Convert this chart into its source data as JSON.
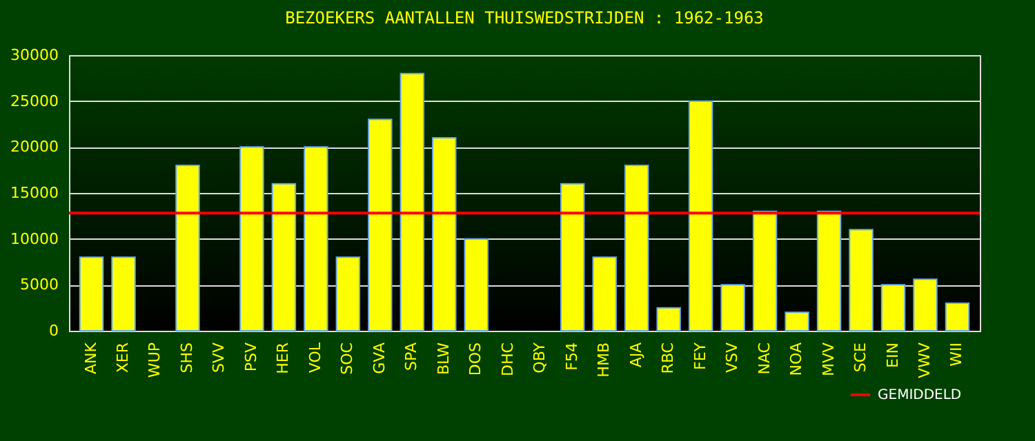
{
  "chart_data": {
    "type": "bar",
    "title": "BEZOEKERS AANTALLEN THUISWEDSTRIJDEN : 1962-1963",
    "categories": [
      "ANK",
      "XER",
      "WUP",
      "SHS",
      "SVV",
      "PSV",
      "HER",
      "VOL",
      "SOC",
      "GVA",
      "SPA",
      "BLW",
      "DOS",
      "DHC",
      "QBY",
      "F54",
      "HMB",
      "AJA",
      "RBC",
      "FEY",
      "VSV",
      "NAC",
      "NOA",
      "MVV",
      "SCE",
      "EIN",
      "VWV",
      "WII"
    ],
    "values": [
      8000,
      8000,
      null,
      18000,
      null,
      20000,
      16000,
      20000,
      8000,
      23000,
      28000,
      21000,
      10000,
      null,
      null,
      16000,
      8000,
      18000,
      2500,
      25000,
      5000,
      13000,
      2000,
      13000,
      11000,
      5000,
      5600,
      3000
    ],
    "color": "#ffff00",
    "ylim": [
      0,
      30000
    ],
    "yticks": [
      0,
      5000,
      10000,
      15000,
      20000,
      25000,
      30000
    ],
    "grid": "y",
    "ref_lines": [
      {
        "axis": "y",
        "value": 12800,
        "label": "GEMIDDELD",
        "color": "#ff0000"
      }
    ],
    "legend": "bottom right"
  }
}
